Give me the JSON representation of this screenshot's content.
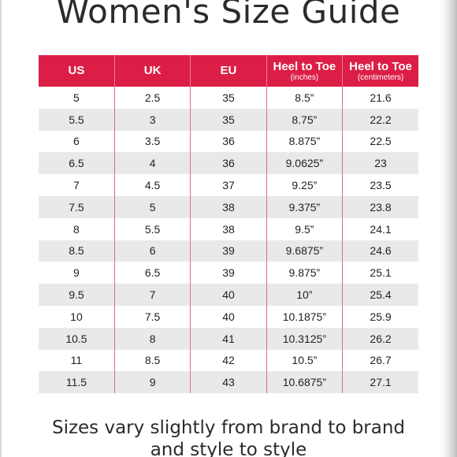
{
  "title": "Women's Size Guide",
  "table": {
    "headers": [
      {
        "label": "US",
        "sub": ""
      },
      {
        "label": "UK",
        "sub": ""
      },
      {
        "label": "EU",
        "sub": ""
      },
      {
        "label": "Heel to Toe",
        "sub": "(inches)"
      },
      {
        "label": "Heel to Toe",
        "sub": "(centimeters)"
      }
    ],
    "rows": [
      [
        "5",
        "2.5",
        "35",
        "8.5”",
        "21.6"
      ],
      [
        "5.5",
        "3",
        "35",
        "8.75”",
        "22.2"
      ],
      [
        "6",
        "3.5",
        "36",
        "8.875”",
        "22.5"
      ],
      [
        "6.5",
        "4",
        "36",
        "9.0625”",
        "23"
      ],
      [
        "7",
        "4.5",
        "37",
        "9.25”",
        "23.5"
      ],
      [
        "7.5",
        "5",
        "38",
        "9.375”",
        "23.8"
      ],
      [
        "8",
        "5.5",
        "38",
        "9.5”",
        "24.1"
      ],
      [
        "8.5",
        "6",
        "39",
        "9.6875”",
        "24.6"
      ],
      [
        "9",
        "6.5",
        "39",
        "9.875”",
        "25.1"
      ],
      [
        "9.5",
        "7",
        "40",
        "10”",
        "25.4"
      ],
      [
        "10",
        "7.5",
        "40",
        "10.1875”",
        "25.9"
      ],
      [
        "10.5",
        "8",
        "41",
        "10.3125”",
        "26.2"
      ],
      [
        "11",
        "8.5",
        "42",
        "10.5”",
        "26.7"
      ],
      [
        "11.5",
        "9",
        "43",
        "10.6875”",
        "27.1"
      ]
    ]
  },
  "footer": {
    "line1": "Sizes vary slightly from brand to brand",
    "line2": "and style to style"
  },
  "colors": {
    "header_bg": "#dc1e46",
    "stripe": "#e9e9e9",
    "text": "#222222"
  }
}
